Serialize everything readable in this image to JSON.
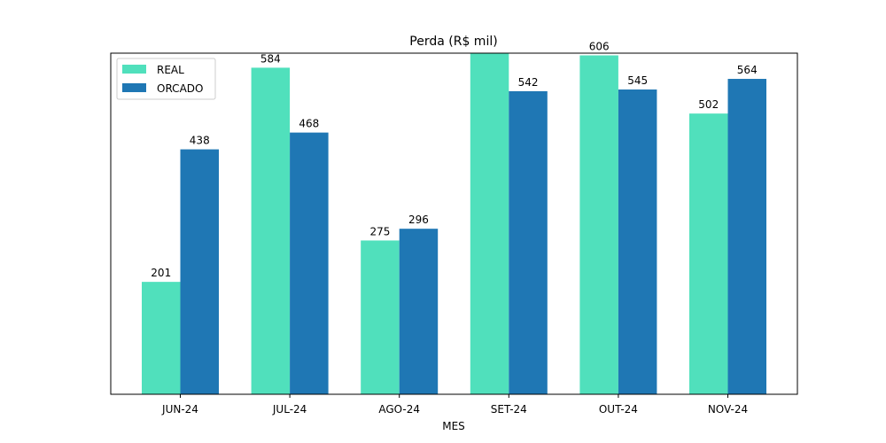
{
  "chart_data": {
    "type": "bar",
    "title": "Perda (R$ mil)",
    "xlabel": "MES",
    "ylabel": "",
    "categories": [
      "JUN-24",
      "JUL-24",
      "AGO-24",
      "SET-24",
      "OUT-24",
      "NOV-24"
    ],
    "series": [
      {
        "name": "REAL",
        "color": "#50e0bc",
        "values": [
          201,
          584,
          275,
          630,
          606,
          502
        ],
        "labels": [
          "201",
          "584",
          "275",
          "",
          "606",
          "502"
        ]
      },
      {
        "name": "ORCADO",
        "color": "#1f77b4",
        "values": [
          438,
          468,
          296,
          542,
          545,
          564
        ],
        "labels": [
          "438",
          "468",
          "296",
          "542",
          "545",
          "564"
        ]
      }
    ],
    "ylim": [
      0,
      610
    ],
    "grid": false,
    "legend": "top-left",
    "y_ticks_visible": false
  }
}
